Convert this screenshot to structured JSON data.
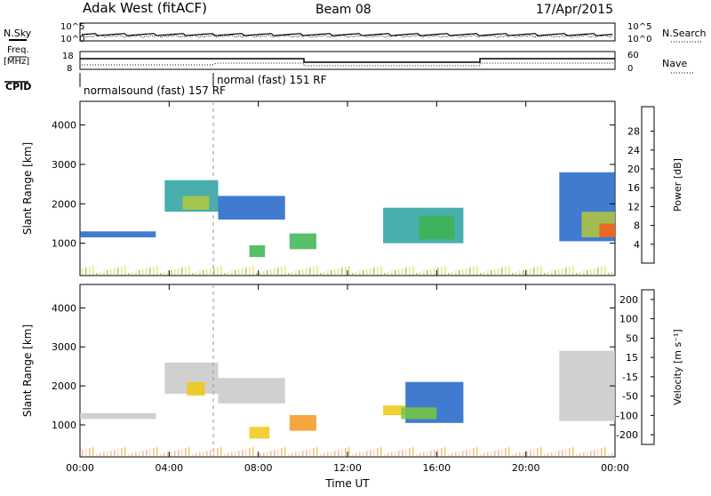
{
  "header": {
    "station": "Adak West (fitACF)",
    "beam": "Beam 08",
    "date": "17/Apr/2015"
  },
  "sky_panel": {
    "left_label": "N.Sky",
    "right_label": "N.Search",
    "left_ticks": [
      "10^5",
      "10^0"
    ],
    "right_ticks": [
      "10^5",
      "10^0"
    ]
  },
  "freq_panel": {
    "left_label_1": "Freq.",
    "left_label_2": "[MHz]",
    "right_label": "Nave",
    "left_ticks": [
      "18",
      "8"
    ],
    "right_ticks": [
      "60",
      "0"
    ],
    "cpid_label": "CPID",
    "cpid_segments": [
      "normalsound (fast) 157 RF",
      "normal (fast) 151 RF"
    ]
  },
  "colors": {
    "power": [
      "#1414dc",
      "#1e64c8",
      "#28a0a0",
      "#3cb450",
      "#b4c83c",
      "#f0c814",
      "#f5961e",
      "#f55a1e",
      "#e61e1e"
    ],
    "velocity": [
      "#e61e1e",
      "#f55a1e",
      "#f5961e",
      "#f0c814",
      "#c8c8c8",
      "#78c83c",
      "#3c9650",
      "#1e64c8",
      "#1414a0"
    ]
  },
  "chart_data": [
    {
      "type": "heatmap",
      "title": "",
      "xlabel": "Time UT",
      "ylabel": "Slant Range [km]",
      "xlim": [
        "00:00",
        "24:00"
      ],
      "ylim": [
        180,
        4600
      ],
      "x_tick_labels": [
        "00:00",
        "04:00",
        "08:00",
        "12:00",
        "16:00",
        "20:00",
        "00:00"
      ],
      "y_tick_labels": [
        "1000",
        "2000",
        "3000",
        "4000"
      ],
      "colorbar_label": "Power [dB]",
      "colorbar_ticks": [
        "4",
        "8",
        "12",
        "16",
        "20",
        "24",
        "28"
      ],
      "colorbar_range": [
        0,
        30
      ],
      "regions": [
        {
          "t": [
            0.0,
            3.4
          ],
          "r": [
            1150,
            1300
          ],
          "value": 6
        },
        {
          "t": [
            3.8,
            6.2
          ],
          "r": [
            1800,
            2600
          ],
          "value": 8
        },
        {
          "t": [
            4.6,
            5.8
          ],
          "r": [
            1850,
            2200
          ],
          "value": 16
        },
        {
          "t": [
            6.2,
            9.2
          ],
          "r": [
            1600,
            2200
          ],
          "value": 6
        },
        {
          "t": [
            7.6,
            8.3
          ],
          "r": [
            650,
            950
          ],
          "value": 12
        },
        {
          "t": [
            9.4,
            10.6
          ],
          "r": [
            850,
            1250
          ],
          "value": 10
        },
        {
          "t": [
            13.6,
            17.2
          ],
          "r": [
            1000,
            1900
          ],
          "value": 8
        },
        {
          "t": [
            15.2,
            16.8
          ],
          "r": [
            1100,
            1700
          ],
          "value": 12
        },
        {
          "t": [
            21.5,
            24.0
          ],
          "r": [
            1050,
            2800
          ],
          "value": 6
        },
        {
          "t": [
            22.5,
            24.0
          ],
          "r": [
            1150,
            1800
          ],
          "value": 14
        },
        {
          "t": [
            23.3,
            24.0
          ],
          "r": [
            1150,
            1500
          ],
          "value": 24
        }
      ]
    },
    {
      "type": "heatmap",
      "title": "",
      "xlabel": "Time UT",
      "ylabel": "Slant Range [km]",
      "xlim": [
        "00:00",
        "24:00"
      ],
      "ylim": [
        180,
        4600
      ],
      "x_tick_labels": [
        "00:00",
        "04:00",
        "08:00",
        "12:00",
        "16:00",
        "20:00",
        "00:00"
      ],
      "y_tick_labels": [
        "1000",
        "2000",
        "3000",
        "4000"
      ],
      "colorbar_label": "Velocity [m s⁻¹]",
      "colorbar_ticks": [
        "200",
        "100",
        "50",
        "15",
        "-15",
        "-50",
        "-100",
        "-200"
      ],
      "colorbar_range": [
        -250,
        250
      ],
      "regions": [
        {
          "t": [
            0.0,
            3.4
          ],
          "r": [
            1150,
            1300
          ],
          "value": 0
        },
        {
          "t": [
            3.8,
            6.2
          ],
          "r": [
            1800,
            2600
          ],
          "value": 0
        },
        {
          "t": [
            4.8,
            5.6
          ],
          "r": [
            1750,
            2100
          ],
          "value": -30
        },
        {
          "t": [
            6.2,
            9.2
          ],
          "r": [
            1550,
            2200
          ],
          "value": 0
        },
        {
          "t": [
            7.6,
            8.5
          ],
          "r": [
            650,
            950
          ],
          "value": -80
        },
        {
          "t": [
            9.4,
            10.6
          ],
          "r": [
            850,
            1250
          ],
          "value": -90
        },
        {
          "t": [
            13.6,
            14.6
          ],
          "r": [
            1250,
            1500
          ],
          "value": -40
        },
        {
          "t": [
            14.6,
            17.2
          ],
          "r": [
            1050,
            2100
          ],
          "value": 150
        },
        {
          "t": [
            14.4,
            16.0
          ],
          "r": [
            1150,
            1450
          ],
          "value": 40
        },
        {
          "t": [
            21.5,
            24.0
          ],
          "r": [
            1100,
            2900
          ],
          "value": 0
        }
      ]
    }
  ]
}
